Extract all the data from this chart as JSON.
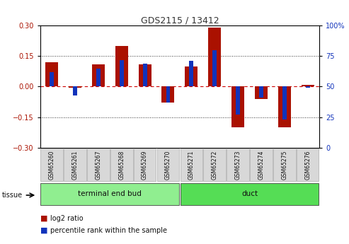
{
  "title": "GDS2115 / 13412",
  "samples": [
    "GSM65260",
    "GSM65261",
    "GSM65267",
    "GSM65268",
    "GSM65269",
    "GSM65270",
    "GSM65271",
    "GSM65272",
    "GSM65273",
    "GSM65274",
    "GSM65275",
    "GSM65276"
  ],
  "log2_ratio": [
    0.12,
    -0.005,
    0.11,
    0.2,
    0.11,
    -0.08,
    0.1,
    0.29,
    -0.2,
    -0.06,
    -0.2,
    0.01
  ],
  "percentile_rank_pct": [
    62,
    43,
    65,
    72,
    69,
    37,
    71,
    80,
    27,
    41,
    23,
    49
  ],
  "groups": [
    {
      "label": "terminal end bud",
      "start": 0,
      "end": 6,
      "color": "#90ee90"
    },
    {
      "label": "duct",
      "start": 6,
      "end": 12,
      "color": "#55dd55"
    }
  ],
  "ylim_left": [
    -0.3,
    0.3
  ],
  "ylim_right": [
    0,
    100
  ],
  "yticks_left": [
    -0.3,
    -0.15,
    0,
    0.15,
    0.3
  ],
  "yticks_right": [
    0,
    25,
    50,
    75,
    100
  ],
  "bar_color_red": "#aa1100",
  "bar_color_blue": "#1133bb",
  "hline_color": "#cc0000",
  "bg_color": "#ffffff",
  "legend_red_label": "log2 ratio",
  "legend_blue_label": "percentile rank within the sample",
  "red_bar_width": 0.55,
  "blue_bar_width": 0.18
}
